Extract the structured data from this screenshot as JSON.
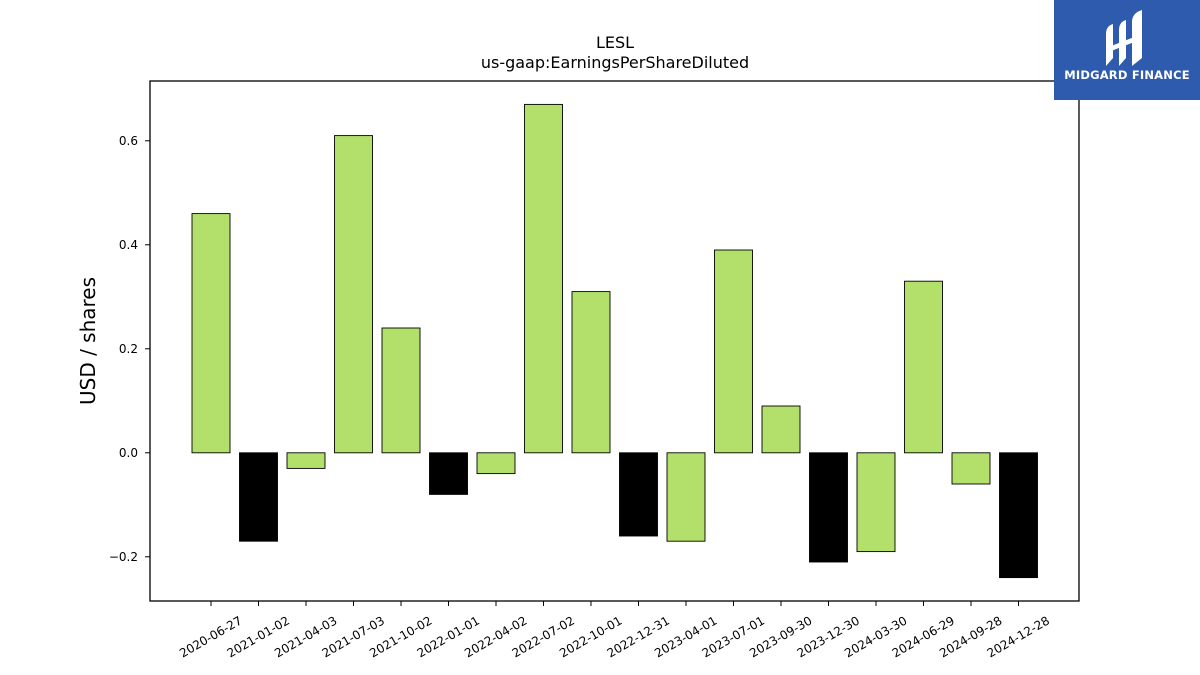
{
  "logo": {
    "text": "MIDGARD FINANCE"
  },
  "chart_data": {
    "type": "bar",
    "title": "LESL",
    "subtitle": "us-gaap:EarningsPerShareDiluted",
    "ylabel": "USD / shares",
    "xlabel": "",
    "ylim": [
      -0.285,
      0.715
    ],
    "yticks": [
      -0.2,
      0.0,
      0.2,
      0.4,
      0.6
    ],
    "ytick_labels": [
      "−0.2",
      "0.0",
      "0.2",
      "0.4",
      "0.6"
    ],
    "categories": [
      "2020-06-27",
      "2021-01-02",
      "2021-04-03",
      "2021-07-03",
      "2021-10-02",
      "2022-01-01",
      "2022-04-02",
      "2022-07-02",
      "2022-10-01",
      "2022-12-31",
      "2023-04-01",
      "2023-07-01",
      "2023-09-30",
      "2023-12-30",
      "2024-03-30",
      "2024-06-29",
      "2024-09-28",
      "2024-12-28"
    ],
    "values": [
      0.46,
      -0.17,
      -0.03,
      0.61,
      0.24,
      -0.08,
      -0.04,
      0.67,
      0.31,
      -0.16,
      -0.17,
      0.39,
      0.09,
      -0.21,
      -0.19,
      0.33,
      -0.06,
      -0.24
    ],
    "bar_colors": [
      "#b3df6b",
      "#000000",
      "#b3df6b",
      "#b3df6b",
      "#b3df6b",
      "#000000",
      "#b3df6b",
      "#b3df6b",
      "#b3df6b",
      "#000000",
      "#b3df6b",
      "#b3df6b",
      "#b3df6b",
      "#000000",
      "#b3df6b",
      "#b3df6b",
      "#b3df6b",
      "#000000"
    ],
    "grid": false,
    "legend": "none"
  }
}
